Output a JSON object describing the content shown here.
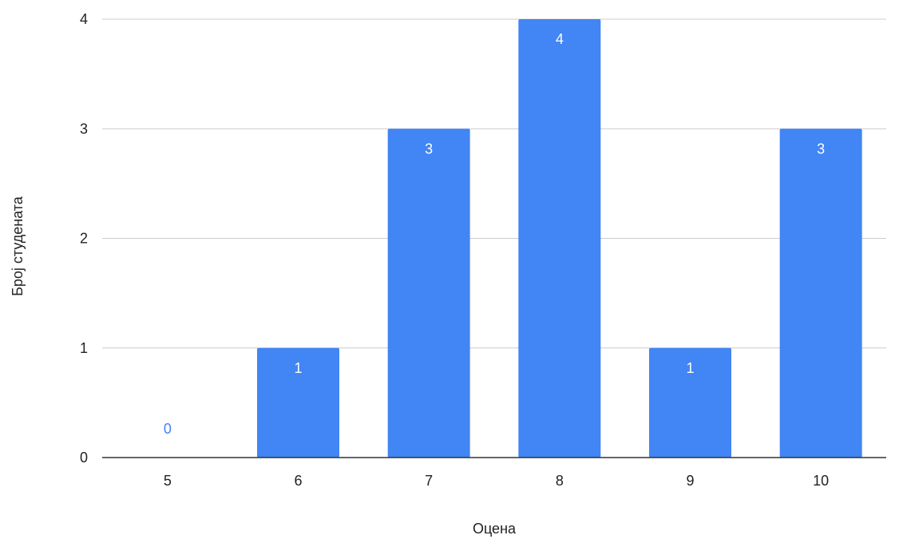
{
  "chart_data": {
    "type": "bar",
    "title": "",
    "xlabel": "Оцена",
    "ylabel": "Број студената",
    "categories": [
      "5",
      "6",
      "7",
      "8",
      "9",
      "10"
    ],
    "series": [
      {
        "values": [
          0,
          1,
          3,
          4,
          1,
          3
        ],
        "color": "#4285f4"
      }
    ],
    "ylim": [
      0,
      4
    ],
    "yticks": [
      0,
      1,
      2,
      3,
      4
    ],
    "grid": true,
    "legend": "none",
    "data_labels": true,
    "colors": {
      "bar": "#4285f4",
      "label_inside": "#ffffff",
      "label_outside": "#4285f4",
      "grid": "#cccccc",
      "axis": "#333333"
    }
  }
}
